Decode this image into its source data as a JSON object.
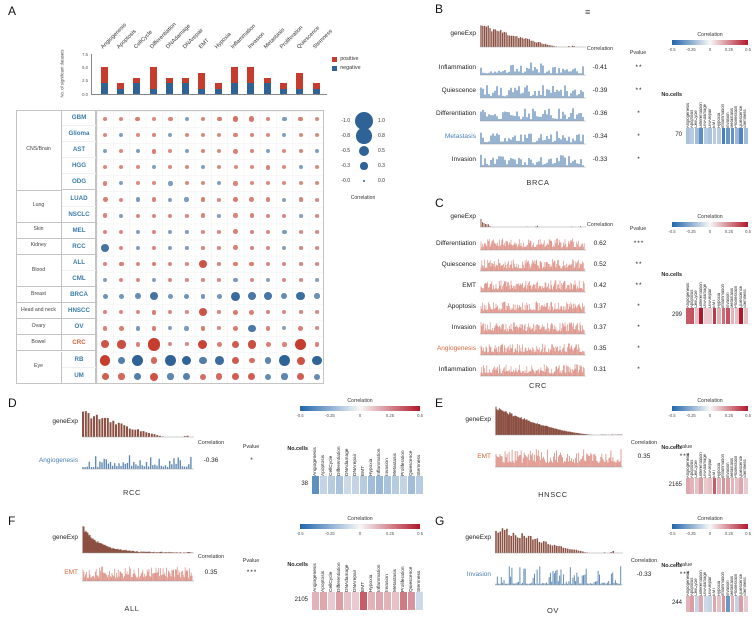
{
  "states": [
    "Angiogenesis",
    "Apoptosis",
    "CellCycle",
    "Differentiation",
    "DNAdamage",
    "DNArepair",
    "EMT",
    "Hypoxia",
    "Inflammation",
    "Invasion",
    "Metastasis",
    "Proliferation",
    "Quiescence",
    "Stemness"
  ],
  "colors": {
    "positive": "#c63d2d",
    "negative": "#2f6397",
    "geneexp": "#8a4f41",
    "trace_blue": "#5b87b5",
    "trace_red": "#de9187",
    "heat_neg": "#2166ac",
    "heat_mid": "#f7f7f7",
    "heat_pos": "#b2182b",
    "row_label_blue": "#3a7ca8",
    "row_label_red": "#d9643a",
    "text": "#222222"
  },
  "chart_data": {
    "A": {
      "type": "bubble-matrix",
      "label": "A",
      "y_axis_label": "No. of significant datasets",
      "y_ticks": [
        0,
        2.5,
        5,
        7.5
      ],
      "bar_legend": [
        {
          "label": "positive"
        },
        {
          "label": "negative"
        }
      ],
      "bars_positive": [
        3,
        1,
        1,
        4,
        1,
        1,
        3,
        1,
        3,
        3,
        1,
        1,
        3,
        1
      ],
      "bars_negative": [
        2,
        1,
        2,
        1,
        2,
        2,
        1,
        1,
        2,
        2,
        2,
        1,
        1,
        1
      ],
      "size_legend": {
        "title": "Correlation",
        "values": [
          1.0,
          0.8,
          0.5,
          0.3,
          0.0
        ],
        "left_labels": [
          "-1.0",
          "-0.8",
          "-0.5",
          "-0.3",
          "-0.0"
        ],
        "right_labels": [
          "1.0",
          "0.8",
          "0.5",
          "0.3",
          "0.0"
        ]
      },
      "groups": [
        {
          "tissue": "CNS/Brain",
          "cancers": [
            "GBM",
            "Glioma",
            "AST",
            "HGG",
            "ODG"
          ]
        },
        {
          "tissue": "Lung",
          "cancers": [
            "LUAD",
            "NSCLC"
          ]
        },
        {
          "tissue": "Skin",
          "cancers": [
            "MEL"
          ]
        },
        {
          "tissue": "Kidney",
          "cancers": [
            "RCC"
          ]
        },
        {
          "tissue": "Blood",
          "cancers": [
            "ALL",
            "CML"
          ]
        },
        {
          "tissue": "Breast",
          "cancers": [
            "BRCA"
          ]
        },
        {
          "tissue": "Head and neck",
          "cancers": [
            "HNSCC"
          ]
        },
        {
          "tissue": "Ovary",
          "cancers": [
            "OV"
          ]
        },
        {
          "tissue": "Bowel",
          "cancers": [
            "CRC"
          ]
        },
        {
          "tissue": "Eye",
          "cancers": [
            "RB",
            "UM"
          ]
        }
      ],
      "rows": [
        {
          "cancer": "GBM",
          "values": [
            0.12,
            0.1,
            0.15,
            0.1,
            0.12,
            -0.1,
            0.12,
            0.15,
            0.22,
            0.18,
            0.12,
            -0.12,
            0.15,
            0.1
          ]
        },
        {
          "cancer": "Glioma",
          "values": [
            0.1,
            -0.1,
            0.1,
            0.12,
            -0.1,
            0.1,
            0.1,
            0.1,
            0.12,
            0.12,
            0.1,
            -0.1,
            0.1,
            0.1
          ]
        },
        {
          "cancer": "AST",
          "values": [
            -0.1,
            0.1,
            -0.12,
            0.15,
            0.1,
            -0.1,
            0.12,
            0.1,
            0.15,
            0.12,
            -0.1,
            0.1,
            0.12,
            -0.1
          ]
        },
        {
          "cancer": "HGG",
          "values": [
            0.1,
            0.1,
            0.1,
            -0.1,
            0.1,
            0.1,
            -0.1,
            0.1,
            0.1,
            0.1,
            0.12,
            0.1,
            -0.1,
            0.1
          ]
        },
        {
          "cancer": "ODG",
          "values": [
            0.12,
            -0.1,
            0.1,
            0.1,
            -0.12,
            0.1,
            0.1,
            -0.1,
            0.12,
            0.1,
            0.1,
            0.1,
            0.1,
            0.1
          ]
        },
        {
          "cancer": "LUAD",
          "values": [
            0.15,
            0.1,
            -0.12,
            0.12,
            -0.1,
            -0.12,
            0.15,
            0.1,
            0.18,
            0.15,
            0.12,
            -0.1,
            0.12,
            0.1
          ]
        },
        {
          "cancer": "NSCLC",
          "values": [
            0.12,
            -0.1,
            0.1,
            0.1,
            0.1,
            0.1,
            0.12,
            -0.1,
            0.12,
            0.12,
            0.1,
            0.1,
            -0.1,
            0.1
          ]
        },
        {
          "cancer": "MEL",
          "values": [
            0.1,
            0.1,
            -0.1,
            0.12,
            -0.1,
            -0.1,
            0.1,
            0.1,
            0.15,
            0.12,
            0.1,
            -0.12,
            0.1,
            0.1
          ]
        },
        {
          "cancer": "RCC",
          "values": [
            -0.36,
            0.1,
            -0.1,
            0.12,
            -0.1,
            -0.1,
            0.12,
            0.1,
            0.15,
            0.12,
            0.1,
            -0.1,
            0.12,
            0.1
          ]
        },
        {
          "cancer": "ALL",
          "values": [
            0.12,
            0.15,
            0.1,
            0.15,
            0.1,
            0.1,
            0.35,
            0.12,
            0.15,
            0.15,
            0.1,
            0.1,
            0.12,
            0.1
          ]
        },
        {
          "cancer": "CML",
          "values": [
            -0.1,
            0.1,
            0.1,
            -0.1,
            0.1,
            0.1,
            0.12,
            0.1,
            -0.12,
            0.1,
            -0.1,
            0.1,
            0.1,
            -0.1
          ]
        },
        {
          "cancer": "BRCA",
          "values": [
            -0.18,
            -0.15,
            -0.2,
            -0.36,
            -0.15,
            -0.18,
            -0.15,
            -0.15,
            -0.41,
            -0.33,
            -0.34,
            -0.22,
            -0.39,
            -0.2
          ]
        },
        {
          "cancer": "HNSCC",
          "values": [
            0.12,
            0.1,
            0.1,
            0.15,
            0.1,
            0.1,
            0.35,
            0.12,
            0.18,
            0.15,
            0.12,
            0.1,
            0.12,
            0.1
          ]
        },
        {
          "cancer": "OV",
          "values": [
            0.12,
            0.15,
            -0.12,
            0.15,
            -0.1,
            -0.12,
            0.15,
            0.1,
            0.18,
            -0.33,
            0.12,
            -0.1,
            0.15,
            0.1
          ]
        },
        {
          "cancer": "CRC",
          "values": [
            0.35,
            0.37,
            0.12,
            0.62,
            0.1,
            0.1,
            0.42,
            0.15,
            0.31,
            0.37,
            0.15,
            0.12,
            0.52,
            0.12
          ]
        },
        {
          "cancer": "RB",
          "values": [
            0.5,
            -0.3,
            -0.55,
            0.25,
            -0.5,
            -0.45,
            -0.3,
            -0.4,
            0.32,
            0.22,
            -0.25,
            -0.5,
            0.35,
            -0.45
          ]
        },
        {
          "cancer": "UM",
          "values": [
            0.3,
            0.25,
            -0.3,
            0.35,
            -0.25,
            -0.28,
            0.22,
            0.25,
            0.3,
            0.3,
            -0.22,
            -0.25,
            0.3,
            -0.22
          ]
        }
      ]
    },
    "B": {
      "type": "correlation-panel",
      "label": "B",
      "title": "BRCA",
      "menu_icon": "≡",
      "gene_label": "geneExp",
      "correlation_header": "Correlation",
      "pvalue_header": "Pvalue",
      "legend_title": "Correlation",
      "legend_ticks": [
        "-0.5",
        "-0.25",
        "0",
        "0.25",
        "0.5"
      ],
      "no_cells_label": "No.cells",
      "no_cells_value": "70",
      "rows": [
        {
          "state": "Inflammation",
          "correlation": "-0.41",
          "pvalue": "**",
          "color": "#222222"
        },
        {
          "state": "Quiescence",
          "correlation": "-0.39",
          "pvalue": "**",
          "color": "#222222"
        },
        {
          "state": "Differentiation",
          "correlation": "-0.36",
          "pvalue": "*",
          "color": "#222222"
        },
        {
          "state": "Metastasis",
          "correlation": "-0.34",
          "pvalue": "*",
          "color": "#4a7fb5"
        },
        {
          "state": "Invasion",
          "correlation": "-0.33",
          "pvalue": "*",
          "color": "#222222"
        }
      ],
      "heatmap": [
        -0.18,
        -0.15,
        -0.2,
        -0.36,
        -0.15,
        -0.18,
        -0.15,
        -0.15,
        -0.41,
        -0.33,
        -0.34,
        -0.22,
        -0.39,
        -0.2
      ],
      "gene_style": "desc-bars",
      "trace_style": "blue-bars"
    },
    "C": {
      "type": "correlation-panel",
      "label": "C",
      "title": "CRC",
      "gene_label": "geneExp",
      "correlation_header": "Correlation",
      "pvalue_header": "Pvalue",
      "legend_title": "Correlation",
      "legend_ticks": [
        "-0.5",
        "-0.25",
        "0",
        "0.25",
        "0.5"
      ],
      "no_cells_label": "No.cells",
      "no_cells_value": "299",
      "rows": [
        {
          "state": "Differentiation",
          "correlation": "0.62",
          "pvalue": "***",
          "color": "#222222"
        },
        {
          "state": "Quiescence",
          "correlation": "0.52",
          "pvalue": "**",
          "color": "#222222"
        },
        {
          "state": "EMT",
          "correlation": "0.42",
          "pvalue": "**",
          "color": "#222222"
        },
        {
          "state": "Apoptosis",
          "correlation": "0.37",
          "pvalue": "*",
          "color": "#222222"
        },
        {
          "state": "Invasion",
          "correlation": "0.37",
          "pvalue": "*",
          "color": "#222222"
        },
        {
          "state": "Angiogenesis",
          "correlation": "0.35",
          "pvalue": "*",
          "color": "#d9643a"
        },
        {
          "state": "Inflammation",
          "correlation": "0.31",
          "pvalue": "*",
          "color": "#222222"
        }
      ],
      "heatmap": [
        0.35,
        0.37,
        0.12,
        0.62,
        0.1,
        0.1,
        0.42,
        0.15,
        0.31,
        0.37,
        0.15,
        0.12,
        0.52,
        0.12
      ],
      "gene_style": "flat-line",
      "trace_style": "red-dense"
    },
    "D": {
      "type": "correlation-panel",
      "label": "D",
      "title": "RCC",
      "gene_label": "geneExp",
      "correlation_header": "Correlation",
      "pvalue_header": "Pvalue",
      "legend_title": "Correlation",
      "legend_ticks": [
        "-0.5",
        "-0.25",
        "0",
        "0.25",
        "0.5"
      ],
      "no_cells_label": "No.cells",
      "no_cells_value": "38",
      "rows": [
        {
          "state": "Angiogenesis",
          "correlation": "-0.36",
          "pvalue": "*",
          "color": "#4a7fb5"
        }
      ],
      "heatmap": [
        -0.36,
        -0.12,
        -0.15,
        -0.18,
        -0.1,
        -0.12,
        -0.15,
        -0.2,
        -0.22,
        -0.18,
        -0.15,
        -0.12,
        -0.2,
        -0.15
      ],
      "gene_style": "desc-bars-chunky",
      "trace_style": "blue-bars"
    },
    "E": {
      "type": "correlation-panel",
      "label": "E",
      "title": "HNSCC",
      "gene_label": "geneExp",
      "correlation_header": "Correlation",
      "pvalue_header": "Pvalue",
      "legend_title": "Correlation",
      "legend_ticks": [
        "-0.5",
        "-0.25",
        "0",
        "0.25",
        "0.5"
      ],
      "no_cells_label": "No.cells",
      "no_cells_value": "2165",
      "rows": [
        {
          "state": "EMT",
          "correlation": "0.35",
          "pvalue": "***",
          "color": "#d9643a"
        }
      ],
      "heatmap": [
        0.18,
        0.15,
        0.12,
        0.2,
        0.1,
        0.12,
        0.35,
        0.15,
        0.22,
        0.2,
        0.15,
        0.12,
        0.18,
        0.1
      ],
      "gene_style": "desc-smooth",
      "trace_style": "red-dense"
    },
    "F": {
      "type": "correlation-panel",
      "label": "F",
      "title": "ALL",
      "gene_label": "geneExp",
      "correlation_header": "Correlation",
      "pvalue_header": "Pvalue",
      "legend_title": "Correlation",
      "legend_ticks": [
        "-0.5",
        "-0.25",
        "0",
        "0.25",
        "0.5"
      ],
      "no_cells_label": "No.cells",
      "no_cells_value": "2105",
      "rows": [
        {
          "state": "EMT",
          "correlation": "0.35",
          "pvalue": "***",
          "color": "#d9643a"
        }
      ],
      "heatmap": [
        0.15,
        0.18,
        0.1,
        0.2,
        0.12,
        0.1,
        0.35,
        0.15,
        0.18,
        0.15,
        0.12,
        0.28,
        0.22,
        -0.1
      ],
      "gene_style": "steep-drop",
      "trace_style": "red-dense"
    },
    "G": {
      "type": "correlation-panel",
      "label": "G",
      "title": "OV",
      "gene_label": "geneExp",
      "correlation_header": "Correlation",
      "pvalue_header": "Pvalue",
      "legend_title": "Correlation",
      "legend_ticks": [
        "-0.5",
        "-0.25",
        "0",
        "0.25",
        "0.5"
      ],
      "no_cells_label": "No.cells",
      "no_cells_value": "244",
      "rows": [
        {
          "state": "Invasion",
          "correlation": "-0.33",
          "pvalue": "***",
          "color": "#4a7fb5"
        }
      ],
      "heatmap": [
        0.15,
        0.2,
        -0.12,
        0.18,
        -0.1,
        -0.12,
        0.18,
        0.12,
        0.22,
        -0.33,
        0.15,
        -0.12,
        0.2,
        0.1
      ],
      "gene_style": "desc-bars",
      "trace_style": "blue-sparse"
    }
  }
}
